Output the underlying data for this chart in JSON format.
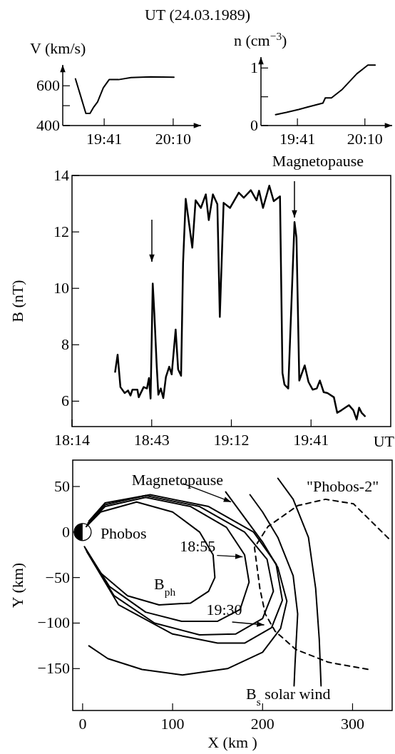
{
  "chart_data": [
    {
      "type": "line",
      "title": "UT   (24.03.1989)",
      "ylabel": "V  (km/s)",
      "xlim": [
        19.393,
        20.362
      ],
      "ylim": [
        400,
        705
      ],
      "xticks": [
        {
          "value": 19.6833,
          "label": "19:41"
        },
        {
          "value": 20.1667,
          "label": "20:10"
        }
      ],
      "yticks": [
        400,
        {
          "value": 500,
          "label": null
        },
        600
      ],
      "color": "#000000",
      "x": [
        19.482,
        19.52,
        19.555,
        19.584,
        19.61,
        19.637,
        19.677,
        19.718,
        19.784,
        19.871,
        20.01,
        20.172
      ],
      "values": [
        635,
        545,
        461,
        461,
        493,
        519,
        590,
        631,
        631,
        641,
        645,
        643
      ]
    },
    {
      "type": "line",
      "ylabel": "n  (cm$^{−3}$)",
      "xlim": [
        19.422,
        20.362
      ],
      "ylim": [
        0,
        1.19
      ],
      "xticks": [
        {
          "value": 19.6833,
          "label": "19:41"
        },
        {
          "value": 20.1667,
          "label": "20:10"
        }
      ],
      "yticks": [
        0,
        {
          "value": 0.5,
          "label": null
        },
        1
      ],
      "color": "#000000",
      "x": [
        19.527,
        19.605,
        19.692,
        19.753,
        19.866,
        19.883,
        19.927,
        20.005,
        20.109,
        20.188,
        20.24
      ],
      "values": [
        0.19,
        0.23,
        0.28,
        0.32,
        0.39,
        0.48,
        0.48,
        0.63,
        0.9,
        1.05,
        1.05
      ]
    },
    {
      "type": "line",
      "xlabel": "UT",
      "ylabel": "B  (nT)",
      "annotations": [
        "Magnetopause"
      ],
      "xlim": [
        18.2333,
        20.1667
      ],
      "ylim": [
        5.1,
        14
      ],
      "xticks": [
        {
          "value": 18.2333,
          "label": "18:14"
        },
        {
          "value": 18.7167,
          "label": "18:43"
        },
        {
          "value": 19.2,
          "label": "19:12"
        },
        {
          "value": 19.6833,
          "label": "19:41"
        }
      ],
      "yticks": [
        6,
        8,
        10,
        12,
        14
      ],
      "color": "#000000",
      "x": [
        18.495,
        18.51,
        18.527,
        18.553,
        18.573,
        18.588,
        18.6,
        18.63,
        18.638,
        18.668,
        18.688,
        18.7,
        18.71,
        18.723,
        18.733,
        18.747,
        18.757,
        18.772,
        18.787,
        18.803,
        18.823,
        18.838,
        18.862,
        18.877,
        18.895,
        18.907,
        18.923,
        18.938,
        18.963,
        18.983,
        19.015,
        19.045,
        19.063,
        19.088,
        19.115,
        19.13,
        19.153,
        19.192,
        19.245,
        19.275,
        19.318,
        19.353,
        19.368,
        19.392,
        19.43,
        19.457,
        19.495,
        19.51,
        19.522,
        19.545,
        19.583,
        19.595,
        19.612,
        19.645,
        19.668,
        19.693,
        19.718,
        19.737,
        19.76,
        19.783,
        19.822,
        19.842,
        19.868,
        19.913,
        19.94,
        19.96,
        19.975,
        19.99,
        20.01
      ],
      "values": [
        7.04,
        7.65,
        6.5,
        6.29,
        6.38,
        6.2,
        6.41,
        6.41,
        6.14,
        6.5,
        6.45,
        6.82,
        6.09,
        10.17,
        9.08,
        7.27,
        6.23,
        6.45,
        6.11,
        6.86,
        7.22,
        6.95,
        8.54,
        7.13,
        6.9,
        10.9,
        13.17,
        12.53,
        11.44,
        13.12,
        12.85,
        13.33,
        12.42,
        13.33,
        12.98,
        8.99,
        13.03,
        12.85,
        13.39,
        13.21,
        13.48,
        13.12,
        13.46,
        12.85,
        13.64,
        13.09,
        13.26,
        7.0,
        6.59,
        6.45,
        12.35,
        11.8,
        6.73,
        7.27,
        6.68,
        6.41,
        6.45,
        6.73,
        6.32,
        6.29,
        6.14,
        5.59,
        5.68,
        5.86,
        5.68,
        5.35,
        5.77,
        5.59,
        5.47
      ]
    },
    {
      "type": "line",
      "xlabel": "X  (km )",
      "ylabel": "Y  (km)",
      "xlim": [
        -11,
        344
      ],
      "ylim": [
        -196,
        79
      ],
      "xticks": [
        0,
        100,
        200,
        300
      ],
      "yticks": [
        -150,
        -100,
        -50,
        0,
        50
      ],
      "annotations": [
        {
          "text": "Magnetopause",
          "x": 165,
          "y": 33
        },
        {
          "text": "Phobos",
          "x": 0,
          "y": 0
        },
        {
          "text": "18:55",
          "x": 185,
          "y": -28
        },
        {
          "text": "19:30",
          "x": 205,
          "y": -102
        },
        "B$_{ph}$",
        {
          "text": "\"Phobos-2\"",
          "x": 270,
          "y": 36
        },
        "B$_{s}$ solar wind"
      ],
      "series": [
        {
          "color": "#000000",
          "x": [
            7,
            28,
            66,
            111,
            161,
            200,
            220,
            227,
            217,
            200,
            159
          ],
          "values": [
            -125,
            -139,
            -151,
            -157,
            -150,
            -132,
            -106,
            -76,
            -39,
            -11,
            44
          ]
        },
        {
          "color": "#000000",
          "line_style": "dashed",
          "x": [
            340,
            301,
            270,
            239,
            206,
            191,
            197,
            203,
            214,
            237,
            273,
            318
          ],
          "values": [
            -7,
            31,
            36,
            29,
            6,
            -17,
            -62,
            -90,
            -109,
            -129,
            -143,
            -151
          ]
        },
        {
          "color": "#000000",
          "x": [
            235,
            236,
            239,
            234,
            217,
            200,
            186
          ],
          "values": [
            -169,
            -146,
            -90,
            -48,
            -6,
            22,
            41
          ]
        },
        {
          "color": "#000000",
          "x": [
            265,
            263,
            259,
            251,
            234,
            217
          ],
          "values": [
            -169,
            -118,
            -62,
            -6,
            36,
            59
          ]
        },
        {
          "color": "#000000",
          "x": [
            4,
            20,
            60,
            100,
            130,
            145,
            147,
            140,
            120,
            85,
            50,
            20,
            2
          ],
          "values": [
            6,
            22,
            33,
            22,
            0,
            -25,
            -50,
            -65,
            -78,
            -80,
            -70,
            -45,
            -16
          ]
        },
        {
          "color": "#000000",
          "x": [
            5,
            25,
            70,
            120,
            160,
            180,
            185,
            175,
            150,
            110,
            70,
            30,
            3
          ],
          "values": [
            8,
            28,
            38,
            28,
            5,
            -25,
            -55,
            -85,
            -98,
            -98,
            -88,
            -60,
            -18
          ]
        },
        {
          "color": "#000000",
          "x": [
            6,
            25,
            70,
            130,
            180,
            205,
            212,
            200,
            170,
            130,
            80,
            35,
            4
          ],
          "values": [
            10,
            30,
            40,
            28,
            0,
            -30,
            -65,
            -95,
            -112,
            -113,
            -100,
            -70,
            -20
          ]
        },
        {
          "color": "#000000",
          "x": [
            7,
            25,
            75,
            140,
            190,
            215,
            222,
            210,
            180,
            150,
            100,
            40,
            5
          ],
          "values": [
            12,
            32,
            41,
            28,
            0,
            -35,
            -75,
            -105,
            -122,
            -122,
            -112,
            -80,
            -22
          ]
        }
      ]
    }
  ]
}
